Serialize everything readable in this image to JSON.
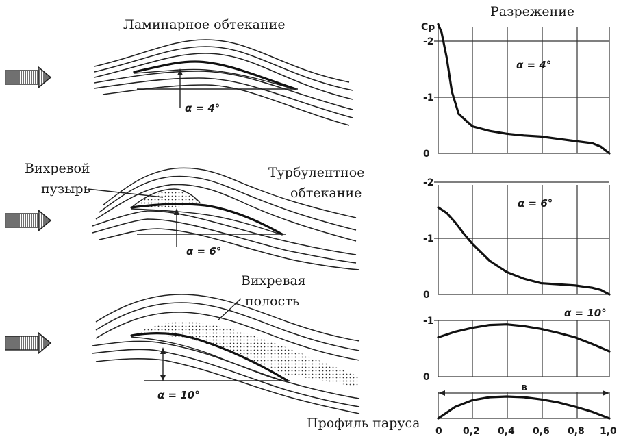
{
  "labels": {
    "laminar": "Ламинарное обтекание",
    "bubble_line1": "Вихревой",
    "bubble_line2": "пузырь",
    "turbulent_line1": "Турбулентное",
    "turbulent_line2": "обтекание",
    "cavity_line1": "Вихревая",
    "cavity_line2": "полость",
    "rarefaction": "Разрежение",
    "sail_profile": "Профиль паруса",
    "cp": "Cp",
    "chord": "в"
  },
  "angles": {
    "a4": "α = 4°",
    "a6": "α = 6°",
    "a10": "α = 10°",
    "g4": "α = 4°",
    "g6": "α = 6°",
    "g10": "α = 10°"
  },
  "chart_data": [
    {
      "type": "line",
      "annotation": "α = 4°",
      "y_ticks": [
        "-2",
        "-1",
        "0"
      ],
      "ylim": [
        0,
        -2.2
      ],
      "xlim": [
        0,
        1.0
      ],
      "series": [
        {
          "x": [
            0,
            0.02,
            0.05,
            0.08,
            0.12,
            0.2,
            0.3,
            0.4,
            0.5,
            0.6,
            0.7,
            0.8,
            0.9,
            0.95,
            1.0
          ],
          "values": [
            -2.3,
            -2.15,
            -1.7,
            -1.1,
            -0.7,
            -0.48,
            -0.4,
            -0.35,
            -0.32,
            -0.3,
            -0.26,
            -0.22,
            -0.18,
            -0.12,
            0
          ]
        }
      ]
    },
    {
      "type": "line",
      "annotation": "α = 6°",
      "y_ticks": [
        "-2",
        "-1",
        "0"
      ],
      "ylim": [
        0,
        -2.2
      ],
      "xlim": [
        0,
        1.0
      ],
      "series": [
        {
          "x": [
            0,
            0.05,
            0.1,
            0.15,
            0.2,
            0.3,
            0.4,
            0.5,
            0.6,
            0.7,
            0.8,
            0.9,
            0.95,
            1.0
          ],
          "values": [
            -1.55,
            -1.45,
            -1.28,
            -1.08,
            -0.9,
            -0.6,
            -0.4,
            -0.28,
            -0.2,
            -0.18,
            -0.16,
            -0.12,
            -0.08,
            0
          ]
        }
      ]
    },
    {
      "type": "line",
      "annotation": "α = 10°",
      "y_ticks": [
        "-1",
        "0"
      ],
      "ylim": [
        0,
        -1.2
      ],
      "xlim": [
        0,
        1.0
      ],
      "series": [
        {
          "x": [
            0,
            0.1,
            0.2,
            0.3,
            0.4,
            0.5,
            0.6,
            0.7,
            0.8,
            0.9,
            1.0
          ],
          "values": [
            -0.7,
            -0.8,
            -0.87,
            -0.92,
            -0.93,
            -0.9,
            -0.85,
            -0.78,
            -0.7,
            -0.58,
            -0.45
          ]
        }
      ]
    },
    {
      "type": "line",
      "annotation": "Профиль паруса",
      "x_ticks": [
        "0",
        "0,2",
        "0,4",
        "0,6",
        "0,8",
        "1,0"
      ],
      "xlim": [
        0,
        1.0
      ],
      "series": [
        {
          "x": [
            0,
            0.1,
            0.2,
            0.3,
            0.4,
            0.5,
            0.6,
            0.7,
            0.8,
            0.9,
            1.0
          ],
          "values": [
            0,
            0.53,
            0.83,
            0.97,
            1.0,
            0.97,
            0.87,
            0.73,
            0.53,
            0.3,
            0
          ]
        }
      ]
    }
  ]
}
